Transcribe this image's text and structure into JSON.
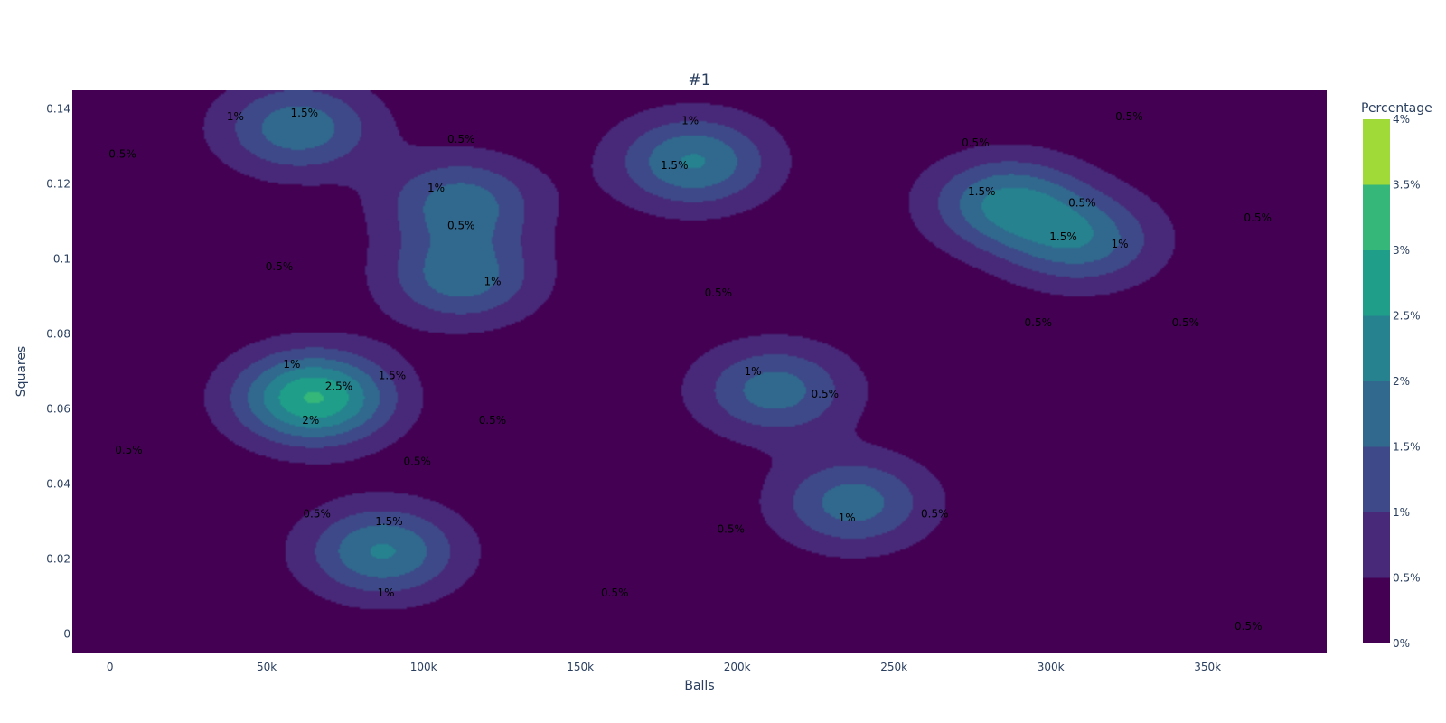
{
  "chart_data": {
    "type": "contour",
    "title": "#1",
    "xlabel": "Balls",
    "ylabel": "Squares",
    "xlim": [
      -12000,
      388000
    ],
    "ylim": [
      -0.005,
      0.145
    ],
    "xticks": [
      0,
      50000,
      100000,
      150000,
      200000,
      250000,
      300000,
      350000
    ],
    "xtick_labels": [
      "0",
      "50k",
      "100k",
      "150k",
      "200k",
      "250k",
      "300k",
      "350k"
    ],
    "yticks": [
      0,
      0.02,
      0.04,
      0.06,
      0.08,
      0.1,
      0.12,
      0.14
    ],
    "ytick_labels": [
      "0",
      "0.02",
      "0.04",
      "0.06",
      "0.08",
      "0.1",
      "0.12",
      "0.14"
    ],
    "colorbar": {
      "title": "Percentage",
      "levels": [
        0,
        0.5,
        1,
        1.5,
        2,
        2.5,
        3,
        3.5,
        4
      ],
      "tick_labels": [
        "0%",
        "0.5%",
        "1%",
        "1.5%",
        "2%",
        "2.5%",
        "3%",
        "3.5%",
        "4%"
      ],
      "colors": [
        "#440154",
        "#482878",
        "#3e4989",
        "#31688e",
        "#26828e",
        "#1f9e89",
        "#35b779",
        "#a0da39",
        "#fde725"
      ]
    },
    "hotspots": [
      {
        "x": 65000,
        "y": 0.063,
        "peak": 2.9
      },
      {
        "x": 87000,
        "y": 0.022,
        "peak": 1.9
      },
      {
        "x": 60000,
        "y": 0.135,
        "peak": 1.7
      },
      {
        "x": 112000,
        "y": 0.115,
        "peak": 1.6
      },
      {
        "x": 112000,
        "y": 0.095,
        "peak": 1.6
      },
      {
        "x": 186000,
        "y": 0.126,
        "peak": 1.9
      },
      {
        "x": 212000,
        "y": 0.065,
        "peak": 1.6
      },
      {
        "x": 237000,
        "y": 0.035,
        "peak": 1.6
      },
      {
        "x": 286000,
        "y": 0.115,
        "peak": 1.9
      },
      {
        "x": 310000,
        "y": 0.105,
        "peak": 1.6
      }
    ],
    "contour_labels": [
      {
        "text": "1%",
        "x": 40000,
        "y": 0.137
      },
      {
        "text": "1.5%",
        "x": 62000,
        "y": 0.138
      },
      {
        "text": "0.5%",
        "x": 4000,
        "y": 0.127
      },
      {
        "text": "0.5%",
        "x": 112000,
        "y": 0.131
      },
      {
        "text": "1%",
        "x": 104000,
        "y": 0.118
      },
      {
        "text": "0.5%",
        "x": 112000,
        "y": 0.108
      },
      {
        "text": "0.5%",
        "x": 54000,
        "y": 0.097
      },
      {
        "text": "1%",
        "x": 122000,
        "y": 0.093
      },
      {
        "text": "1%",
        "x": 185000,
        "y": 0.136
      },
      {
        "text": "1.5%",
        "x": 180000,
        "y": 0.124
      },
      {
        "text": "0.5%",
        "x": 276000,
        "y": 0.13
      },
      {
        "text": "0.5%",
        "x": 325000,
        "y": 0.137
      },
      {
        "text": "1.5%",
        "x": 278000,
        "y": 0.117
      },
      {
        "text": "0.5%",
        "x": 310000,
        "y": 0.114
      },
      {
        "text": "1.5%",
        "x": 304000,
        "y": 0.105
      },
      {
        "text": "1%",
        "x": 322000,
        "y": 0.103
      },
      {
        "text": "0.5%",
        "x": 366000,
        "y": 0.11
      },
      {
        "text": "0.5%",
        "x": 194000,
        "y": 0.09
      },
      {
        "text": "0.5%",
        "x": 296000,
        "y": 0.082
      },
      {
        "text": "0.5%",
        "x": 343000,
        "y": 0.082
      },
      {
        "text": "1%",
        "x": 58000,
        "y": 0.071
      },
      {
        "text": "2.5%",
        "x": 73000,
        "y": 0.065
      },
      {
        "text": "1.5%",
        "x": 90000,
        "y": 0.068
      },
      {
        "text": "2%",
        "x": 64000,
        "y": 0.056
      },
      {
        "text": "0.5%",
        "x": 122000,
        "y": 0.056
      },
      {
        "text": "1%",
        "x": 205000,
        "y": 0.069
      },
      {
        "text": "0.5%",
        "x": 228000,
        "y": 0.063
      },
      {
        "text": "0.5%",
        "x": 6000,
        "y": 0.048
      },
      {
        "text": "0.5%",
        "x": 98000,
        "y": 0.045
      },
      {
        "text": "0.5%",
        "x": 66000,
        "y": 0.031
      },
      {
        "text": "1.5%",
        "x": 89000,
        "y": 0.029
      },
      {
        "text": "1%",
        "x": 88000,
        "y": 0.01
      },
      {
        "text": "1%",
        "x": 235000,
        "y": 0.03
      },
      {
        "text": "0.5%",
        "x": 263000,
        "y": 0.031
      },
      {
        "text": "0.5%",
        "x": 198000,
        "y": 0.027
      },
      {
        "text": "0.5%",
        "x": 161000,
        "y": 0.01
      },
      {
        "text": "0.5%",
        "x": 363000,
        "y": 0.001
      }
    ]
  }
}
